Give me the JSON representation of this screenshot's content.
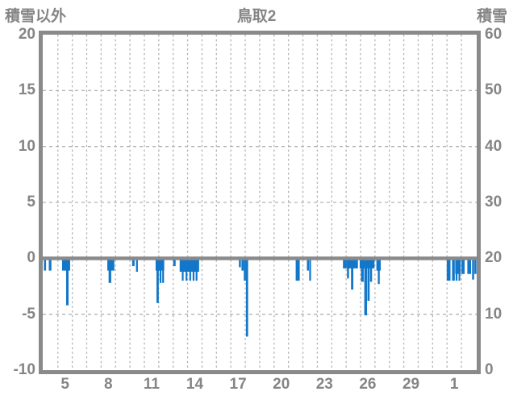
{
  "header": {
    "left_axis_title": "積雪以外",
    "chart_title": "鳥取2",
    "right_axis_title": "積雪"
  },
  "colors": {
    "bar_blue": "#1277c9",
    "axis_gray": "#8a8a8a",
    "label_gray": "#858585",
    "grid_gray": "#b3b3b3",
    "background": "#ffffff"
  },
  "chart_data": {
    "type": "bar",
    "title": "鳥取2",
    "left_axis": {
      "label": "積雪以外",
      "min": -10,
      "max": 20,
      "ticks": [
        20,
        15,
        10,
        5,
        0,
        -5,
        -10
      ]
    },
    "right_axis": {
      "label": "積雪",
      "min": 0,
      "max": 60,
      "ticks": [
        60,
        50,
        40,
        30,
        20,
        10,
        0
      ]
    },
    "x_axis": {
      "day_min": 3.95,
      "day_max": 34.06,
      "gridline_days_start": 5,
      "gridline_days_end": 33,
      "tick_days": [
        5,
        8,
        11,
        14,
        17,
        20,
        23,
        26,
        29,
        32
      ],
      "tick_labels": [
        "5",
        "8",
        "11",
        "14",
        "17",
        "20",
        "23",
        "26",
        "29",
        "1"
      ]
    },
    "grid": {
      "horizontal_dashed_values": [
        15,
        10,
        5,
        -5
      ],
      "zero_line_value": 0
    },
    "series": [
      {
        "name": "積雪以外",
        "axis": "left",
        "bars": [
          [
            4.03,
            4.18,
            -1.1
          ],
          [
            4.37,
            4.55,
            -1.1
          ],
          [
            5.29,
            5.85,
            -1.1
          ],
          [
            5.57,
            5.74,
            -4.2
          ],
          [
            8.43,
            8.92,
            -1.1
          ],
          [
            8.52,
            8.7,
            -2.2
          ],
          [
            10.15,
            10.32,
            -0.7
          ],
          [
            10.42,
            10.55,
            -1.2
          ],
          [
            11.78,
            12.38,
            -1.1
          ],
          [
            11.84,
            12.0,
            -4.0
          ],
          [
            12.06,
            12.18,
            -2.2
          ],
          [
            12.24,
            12.36,
            -2.2
          ],
          [
            13.0,
            13.17,
            -0.7
          ],
          [
            13.45,
            14.8,
            -1.2
          ],
          [
            13.6,
            13.72,
            -2.0
          ],
          [
            13.86,
            13.98,
            -2.0
          ],
          [
            14.12,
            14.24,
            -2.0
          ],
          [
            14.35,
            14.47,
            -2.0
          ],
          [
            14.56,
            14.68,
            -2.0
          ],
          [
            17.56,
            17.7,
            -0.8
          ],
          [
            17.74,
            17.9,
            -1.1
          ],
          [
            17.9,
            18.05,
            -2.0
          ],
          [
            18.05,
            18.2,
            -7.0
          ],
          [
            21.5,
            21.78,
            -2.0
          ],
          [
            22.28,
            22.42,
            -1.1
          ],
          [
            22.44,
            22.56,
            -2.0
          ],
          [
            24.78,
            25.0,
            -0.9
          ],
          [
            25.0,
            25.82,
            -0.9
          ],
          [
            25.06,
            25.2,
            -1.8
          ],
          [
            25.34,
            25.5,
            -2.8
          ],
          [
            25.94,
            26.97,
            -0.9
          ],
          [
            26.03,
            26.22,
            -2.1
          ],
          [
            26.26,
            26.45,
            -5.1
          ],
          [
            26.48,
            26.63,
            -3.8
          ],
          [
            26.66,
            26.8,
            -2.1
          ],
          [
            27.1,
            27.4,
            -1.1
          ],
          [
            27.2,
            27.33,
            -2.3
          ],
          [
            31.98,
            32.24,
            -2.0
          ],
          [
            32.35,
            32.54,
            -2.0
          ],
          [
            32.57,
            32.95,
            -1.4
          ],
          [
            32.6,
            32.72,
            -2.0
          ],
          [
            32.8,
            32.92,
            -2.0
          ],
          [
            33.0,
            33.22,
            -1.4
          ],
          [
            33.41,
            33.67,
            -1.4
          ],
          [
            33.74,
            33.88,
            -1.9
          ],
          [
            33.9,
            34.04,
            -1.4
          ]
        ]
      }
    ]
  }
}
